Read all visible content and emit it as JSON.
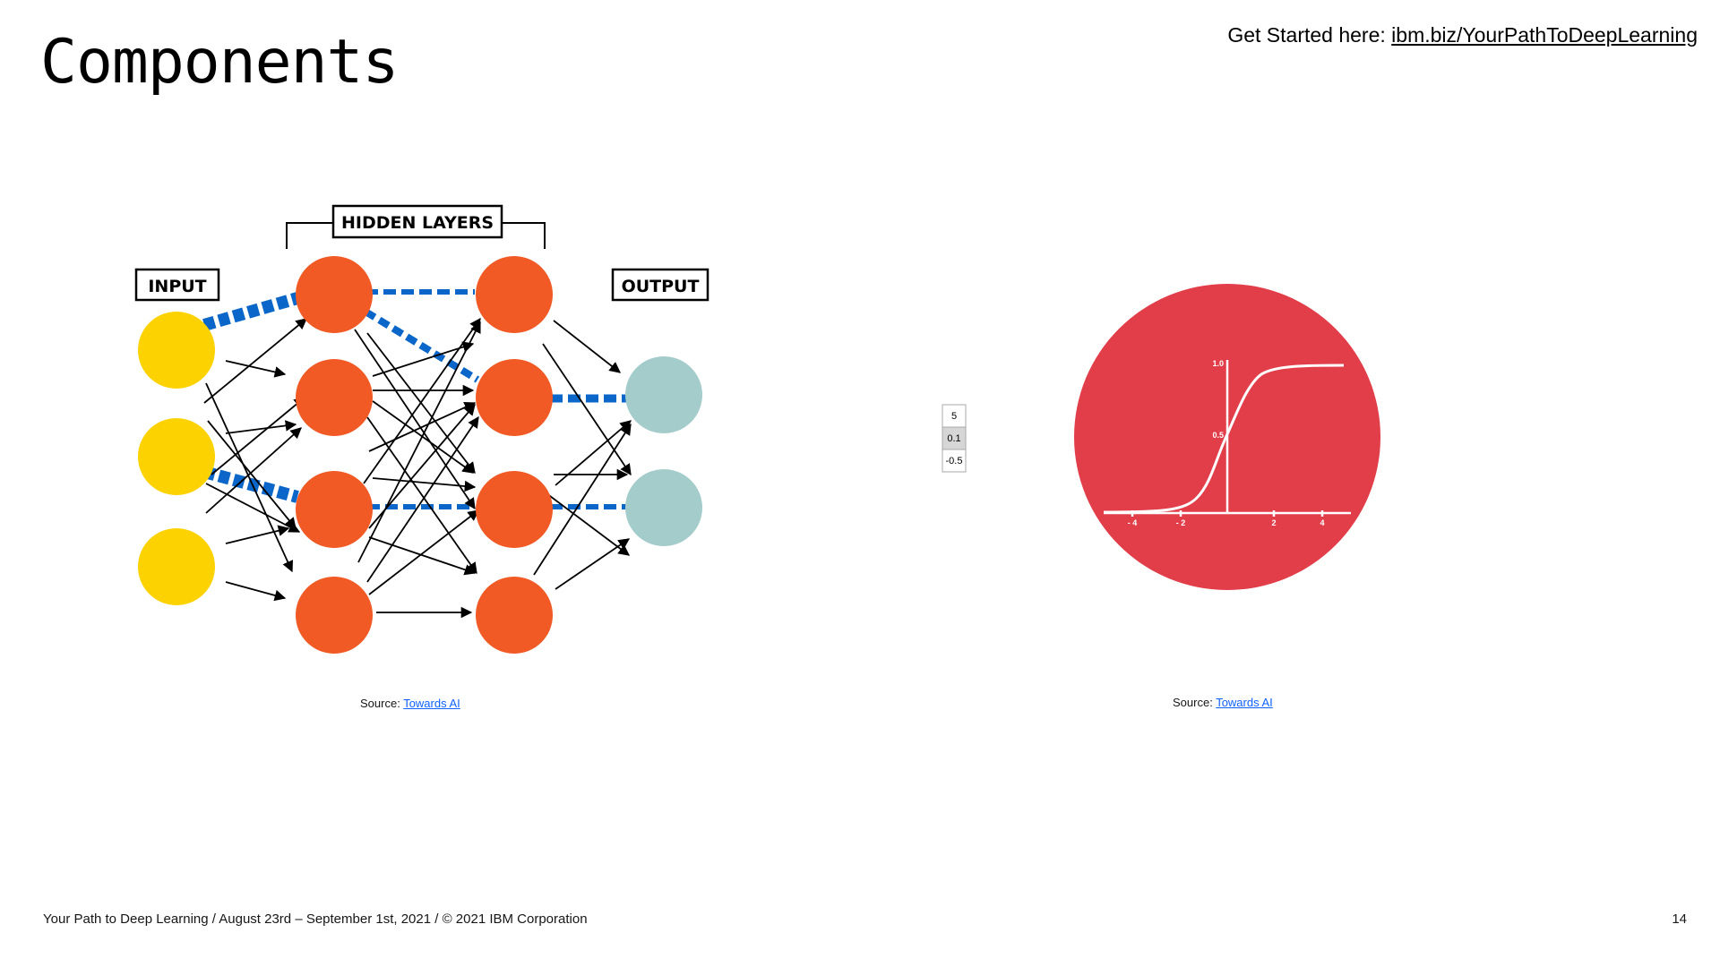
{
  "slide": {
    "title": "Components",
    "get_started_prefix": "Get Started here: ",
    "get_started_link": "ibm.biz/YourPathToDeepLearning",
    "footer": "Your Path to Deep Learning / August 23rd – September 1st, 2021 / © 2021 IBM Corporation",
    "page_number": "14"
  },
  "nn_diagram": {
    "hidden_label": "HIDDEN LAYERS",
    "input_label": "INPUT",
    "output_label": "OUTPUT",
    "colors": {
      "input": "#fcd200",
      "hidden": "#f15a24",
      "output": "#a3cccb",
      "highlight": "#0a66c8",
      "arrow": "#000000"
    },
    "source_prefix": "Source: ",
    "source_link": "Towards AI"
  },
  "sigmoid": {
    "cells": [
      "5",
      "0.1",
      "-0.5"
    ],
    "y_ticks": [
      "1.0",
      "0.5"
    ],
    "x_ticks": [
      "- 4",
      "- 2",
      "2",
      "4"
    ],
    "colors": {
      "circle": "#e23e4a",
      "curve": "#ffffff"
    },
    "source_prefix": "Source: ",
    "source_link": "Towards AI"
  }
}
